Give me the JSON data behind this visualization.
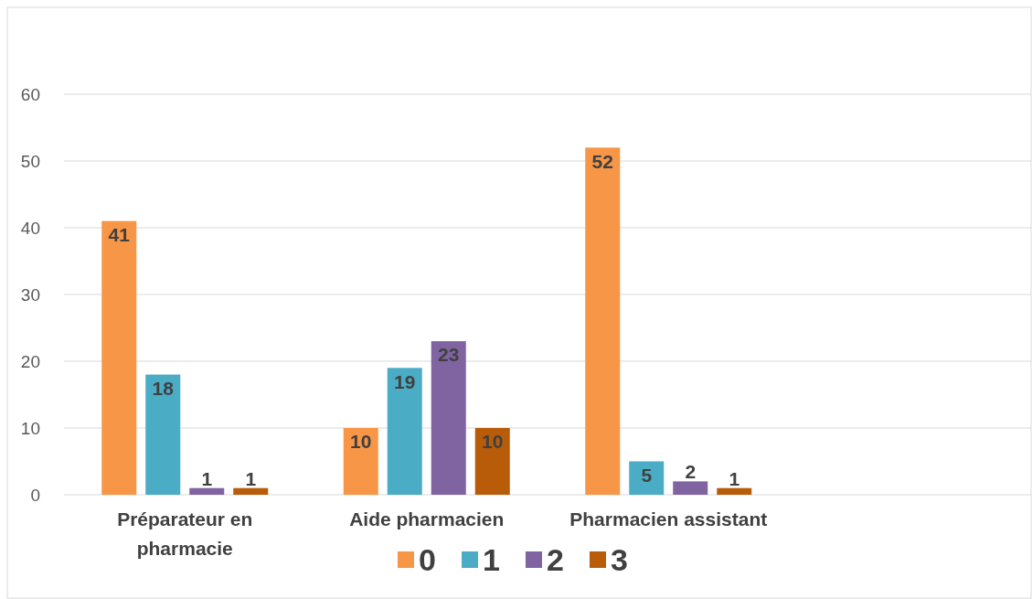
{
  "chart_data": {
    "type": "bar",
    "categories": [
      "Préparateur en pharmacie",
      "Aide pharmacien",
      "Pharmacien assistant",
      null
    ],
    "series": [
      {
        "name": "0",
        "color": "#f79646",
        "values": [
          41,
          10,
          52,
          null
        ]
      },
      {
        "name": "1",
        "color": "#4bacc6",
        "values": [
          18,
          19,
          5,
          null
        ]
      },
      {
        "name": "2",
        "color": "#8064a2",
        "values": [
          1,
          23,
          2,
          null
        ]
      },
      {
        "name": "3",
        "color": "#b85c0a",
        "values": [
          1,
          10,
          1,
          null
        ]
      }
    ],
    "ylim": [
      0,
      60
    ],
    "yticks": [
      0,
      10,
      20,
      30,
      40,
      50,
      60
    ],
    "grid": "y",
    "legend": "bottom",
    "data_labels": true
  }
}
